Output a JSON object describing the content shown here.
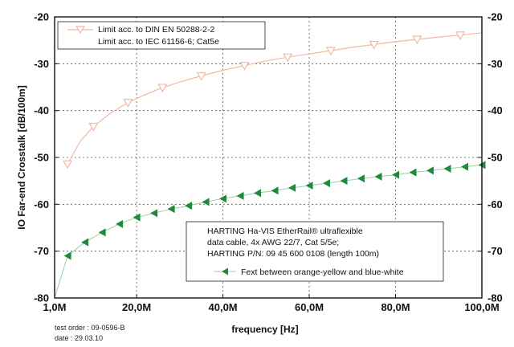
{
  "chart_data": {
    "type": "line",
    "xlabel": "frequency [Hz]",
    "ylabel": "IO Far-end Crosstalk [dB/100m]",
    "xlim": [
      1,
      100
    ],
    "ylim": [
      -80,
      -20
    ],
    "grid": true,
    "x_ticks": [
      1,
      20,
      40,
      60,
      80,
      100
    ],
    "x_tick_labels": [
      "1,0M",
      "20,0M",
      "40,0M",
      "60,0M",
      "80,0M",
      "100,0M"
    ],
    "y_ticks": [
      -80,
      -70,
      -60,
      -50,
      -40,
      -30,
      -20
    ],
    "y_tick_labels": [
      "-80",
      "-70",
      "-60",
      "-50",
      "-40",
      "-30",
      "-20"
    ],
    "series": [
      {
        "name": "Limit acc. to DIN EN 50288-2-2",
        "name2": "Limit acc. to IEC 61156-6; Cat5e",
        "role": "limit",
        "color": "#f2b9a4",
        "marker": "triangle-down-open",
        "x": [
          4,
          7,
          10,
          14,
          18,
          22,
          26,
          30,
          35,
          40,
          45,
          50,
          55,
          60,
          65,
          70,
          75,
          80,
          85,
          90,
          95,
          100
        ],
        "y": [
          -51.4,
          -46.5,
          -43.4,
          -40.5,
          -38.3,
          -36.6,
          -35.1,
          -33.9,
          -32.6,
          -31.4,
          -30.4,
          -29.4,
          -28.6,
          -27.9,
          -27.2,
          -26.5,
          -25.9,
          -25.3,
          -24.8,
          -24.3,
          -23.9,
          -23.4
        ]
      },
      {
        "name": "Fext between orange-yellow and blue-white",
        "role": "measurement",
        "color": "#1e8a3a",
        "marker": "triangle-left-filled",
        "x": [
          1,
          4,
          8,
          12,
          16,
          20,
          24,
          28,
          32,
          36,
          40,
          44,
          48,
          52,
          56,
          60,
          64,
          68,
          72,
          76,
          80,
          84,
          88,
          92,
          96,
          100
        ],
        "y": [
          -80,
          -71,
          -68.1,
          -66,
          -64.2,
          -62.8,
          -61.9,
          -61,
          -60.3,
          -59.5,
          -58.8,
          -58.2,
          -57.6,
          -57.1,
          -56.5,
          -56,
          -55.5,
          -55,
          -54.5,
          -54.1,
          -53.7,
          -53.2,
          -52.8,
          -52.4,
          -52,
          -51.6
        ]
      }
    ]
  },
  "legend_top": {
    "line1": "Limit acc. to DIN EN 50288-2-2",
    "line2": "Limit acc. to IEC 61156-6; Cat5e"
  },
  "legend_bottom": {
    "line1": "HARTING Ha-VIS EtherRail® ultraflexible",
    "line2": "data cable, 4x AWG 22/7, Cat 5/5e;",
    "line3": "HARTING P/N: 09 45 600 0108 (length 100m)",
    "line4": "Fext between orange-yellow and blue-white"
  },
  "footer": {
    "test_order": "test order : 09-0596-B",
    "date": "date : 29.03.10"
  }
}
